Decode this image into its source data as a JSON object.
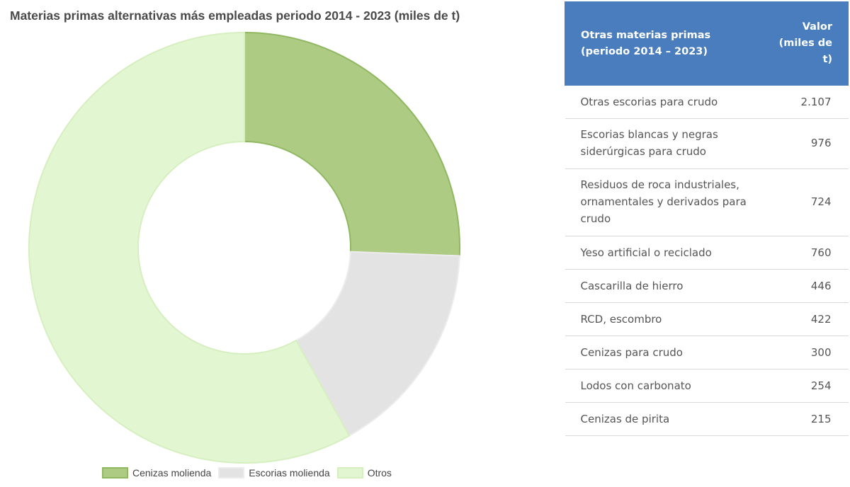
{
  "chart_data": {
    "type": "pie",
    "title": "Materias primas alternativas más empleadas periodo 2014 - 2023 (miles de t)",
    "categories": [
      "Cenizas molienda",
      "Escorias molienda",
      "Otros"
    ],
    "values": [
      25.6,
      16.3,
      58.1
    ],
    "colors": [
      "#aecb84",
      "#e3e3e3",
      "#e2f6d1"
    ],
    "stroke_colors": [
      "#8fb861",
      "#ececec",
      "#d6efc0"
    ],
    "legend_position": "bottom",
    "donut": true
  },
  "table": {
    "header_name": "Otras materias primas (periodo 2014 – 2023)",
    "header_value": "Valor (miles de t)",
    "rows": [
      {
        "name": "Otras escorias para crudo",
        "value": "2.107"
      },
      {
        "name": "Escorias blancas y negras siderúrgicas para crudo",
        "value": "976"
      },
      {
        "name": "Residuos de roca industriales, ornamentales y derivados para crudo",
        "value": "724"
      },
      {
        "name": "Yeso artificial o reciclado",
        "value": "760"
      },
      {
        "name": "Cascarilla de hierro",
        "value": "446"
      },
      {
        "name": "RCD, escombro",
        "value": "422"
      },
      {
        "name": "Cenizas para crudo",
        "value": "300"
      },
      {
        "name": "Lodos con carbonato",
        "value": "254"
      },
      {
        "name": "Cenizas de pirita",
        "value": "215"
      }
    ]
  }
}
